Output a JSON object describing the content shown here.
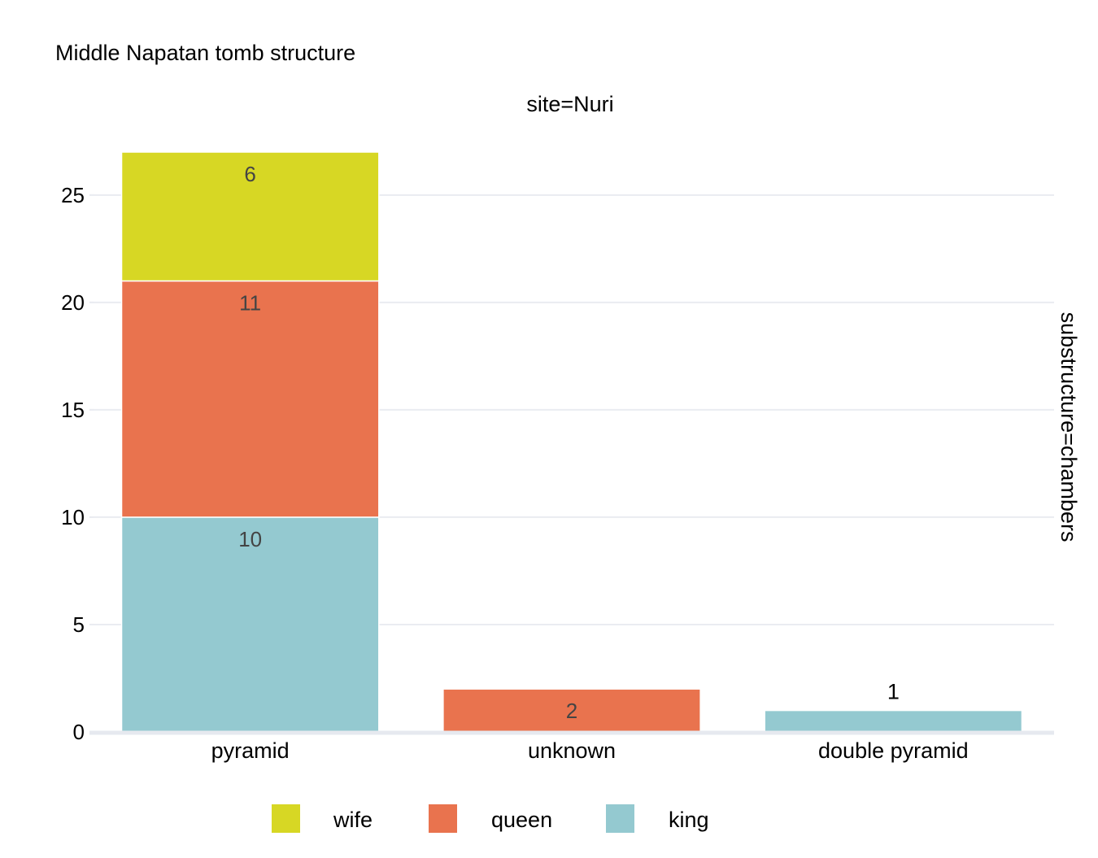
{
  "chart_data": {
    "type": "bar",
    "stacked": true,
    "title": "Middle Napatan tomb structure",
    "facet_column_label": "site=Nuri",
    "facet_row_label": "substructure=chambers",
    "categories": [
      "pyramid",
      "unknown",
      "double pyramid"
    ],
    "series": [
      {
        "name": "king",
        "color": "#94c9d0",
        "values": [
          10,
          0,
          1
        ]
      },
      {
        "name": "queen",
        "color": "#e9734e",
        "values": [
          11,
          2,
          0
        ]
      },
      {
        "name": "wife",
        "color": "#d7d724",
        "values": [
          6,
          0,
          0
        ]
      }
    ],
    "legend_order": [
      "wife",
      "queen",
      "king"
    ],
    "legend_position": "bottom",
    "ylim": [
      0,
      27
    ],
    "yticks": [
      0,
      5,
      10,
      15,
      20,
      25
    ],
    "grid": "horizontal",
    "xlabel": "",
    "ylabel": "",
    "data_label_colors": {
      "inside": "#444444",
      "outside": "#000000"
    }
  }
}
